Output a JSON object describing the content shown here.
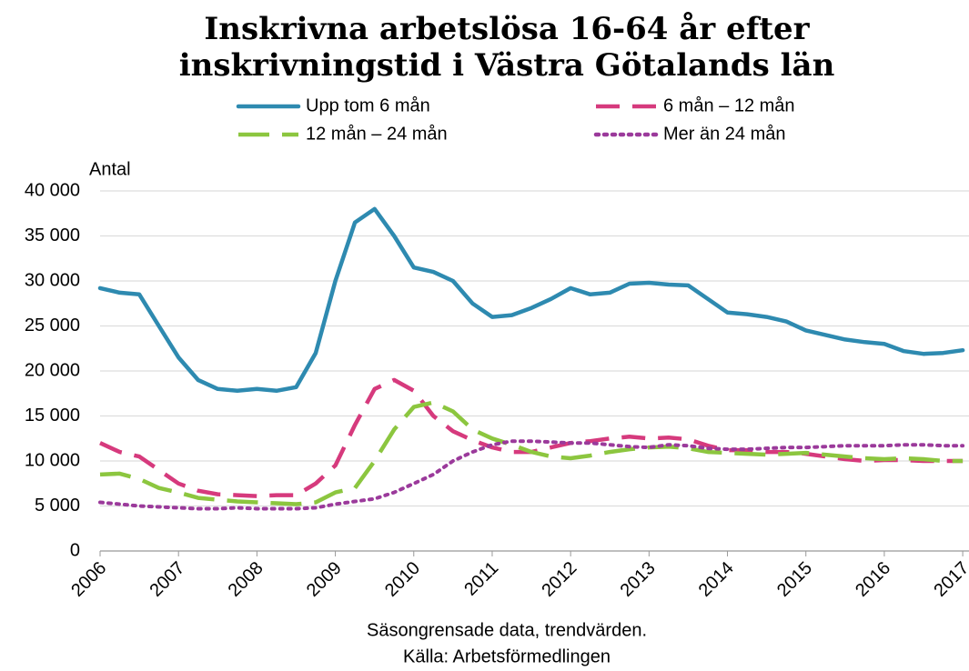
{
  "chart_data": {
    "type": "line",
    "title": "Inskrivna arbetslösa 16-64 år efter",
    "subtitle": "inskrivningstid i Västra Götalands län",
    "y_label": "Antal",
    "footer": [
      "Säsongrensade data, trendvärden.",
      "Källa: Arbetsförmedlingen"
    ],
    "x": [
      2006,
      2006.25,
      2006.5,
      2006.75,
      2007,
      2007.25,
      2007.5,
      2007.75,
      2008,
      2008.25,
      2008.5,
      2008.75,
      2009,
      2009.25,
      2009.5,
      2009.75,
      2010,
      2010.25,
      2010.5,
      2010.75,
      2011,
      2011.25,
      2011.5,
      2011.75,
      2012,
      2012.25,
      2012.5,
      2012.75,
      2013,
      2013.25,
      2013.5,
      2013.75,
      2014,
      2014.25,
      2014.5,
      2014.75,
      2015,
      2015.25,
      2015.5,
      2015.75,
      2016,
      2016.25,
      2016.5,
      2016.75,
      2017
    ],
    "series": [
      {
        "name": "Upp tom 6 mån",
        "color": "#2e8ab0",
        "dash": "solid",
        "values": [
          29200,
          28700,
          28500,
          25000,
          21500,
          19000,
          18000,
          17800,
          18000,
          17800,
          18200,
          22000,
          30000,
          36500,
          38000,
          35000,
          31500,
          31000,
          30000,
          27500,
          26000,
          26200,
          27000,
          28000,
          29200,
          28500,
          28700,
          29700,
          29800,
          29600,
          29500,
          28000,
          26500,
          26300,
          26000,
          25500,
          24500,
          24000,
          23500,
          23200,
          23000,
          22200,
          21900,
          22000,
          22300
        ]
      },
      {
        "name": "6 mån – 12 mån",
        "color": "#d63a7d",
        "dash": "dashed",
        "values": [
          12000,
          11000,
          10500,
          9000,
          7500,
          6700,
          6300,
          6200,
          6100,
          6200,
          6200,
          7500,
          9500,
          14000,
          18000,
          19000,
          17800,
          15000,
          13300,
          12300,
          11500,
          11000,
          11000,
          11500,
          12000,
          12200,
          12500,
          12700,
          12500,
          12600,
          12400,
          11700,
          11200,
          11200,
          11000,
          11000,
          10800,
          10500,
          10200,
          10000,
          10100,
          10100,
          10000,
          10000,
          10000
        ]
      },
      {
        "name": "12 mån – 24 mån",
        "color": "#8cc63f",
        "dash": "longdash",
        "values": [
          8500,
          8600,
          8000,
          7000,
          6500,
          5900,
          5700,
          5500,
          5400,
          5300,
          5200,
          5400,
          6500,
          7000,
          10000,
          13500,
          16000,
          16500,
          15500,
          13500,
          12500,
          11800,
          11000,
          10500,
          10300,
          10600,
          11000,
          11300,
          11500,
          11600,
          11400,
          11000,
          10900,
          10800,
          10700,
          10800,
          10900,
          10700,
          10500,
          10300,
          10200,
          10300,
          10200,
          10000,
          10000
        ]
      },
      {
        "name": "Mer än 24 mån",
        "color": "#9b3a9b",
        "dash": "dotted",
        "values": [
          5400,
          5200,
          5000,
          4900,
          4800,
          4700,
          4700,
          4800,
          4700,
          4700,
          4700,
          4800,
          5200,
          5500,
          5800,
          6500,
          7500,
          8500,
          10000,
          11000,
          11800,
          12200,
          12200,
          12100,
          12000,
          12000,
          11800,
          11600,
          11500,
          11800,
          11700,
          11400,
          11300,
          11300,
          11400,
          11500,
          11500,
          11600,
          11700,
          11700,
          11700,
          11800,
          11800,
          11700,
          11700
        ]
      }
    ],
    "xlim": [
      2006,
      2017.08
    ],
    "xticks": [
      2006,
      2007,
      2008,
      2009,
      2010,
      2011,
      2012,
      2013,
      2014,
      2015,
      2016,
      2017
    ],
    "ylim": [
      0,
      40000
    ],
    "yticks": [
      0,
      {
        "value": 5000,
        "label": "5 000"
      },
      {
        "value": 10000,
        "label": "10 000"
      },
      {
        "value": 15000,
        "label": "15 000"
      },
      {
        "value": 20000,
        "label": "20 000"
      },
      {
        "value": 25000,
        "label": "25 000"
      },
      {
        "value": 30000,
        "label": "30 000"
      },
      {
        "value": 35000,
        "label": "35 000"
      },
      {
        "value": 40000,
        "label": "40 000"
      }
    ],
    "grid": true,
    "legend": "top"
  }
}
